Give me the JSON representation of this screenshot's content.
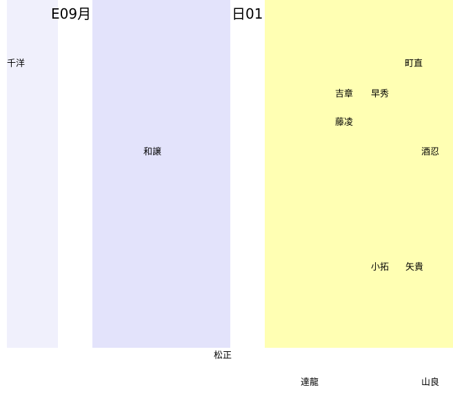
{
  "panels": [
    {
      "color": "#f0f0fc"
    },
    {
      "color": "#e3e3fb"
    },
    {
      "color": "#ffffb3"
    }
  ],
  "heading": {
    "left_fragment": "E09月",
    "right_fragment": "日01"
  },
  "names": {
    "senyou": "千洋",
    "wajou": "和譲",
    "machinao": "町直",
    "kichishou": "吉章",
    "soushuu": "早秀",
    "fujiryou": "藤凌",
    "sakeshinobu": "酒忍",
    "kotaku": "小拓",
    "yakan": "矢貴",
    "matsumasa": "松正",
    "tatsuryuu": "達龍",
    "yamayoshi": "山良"
  }
}
